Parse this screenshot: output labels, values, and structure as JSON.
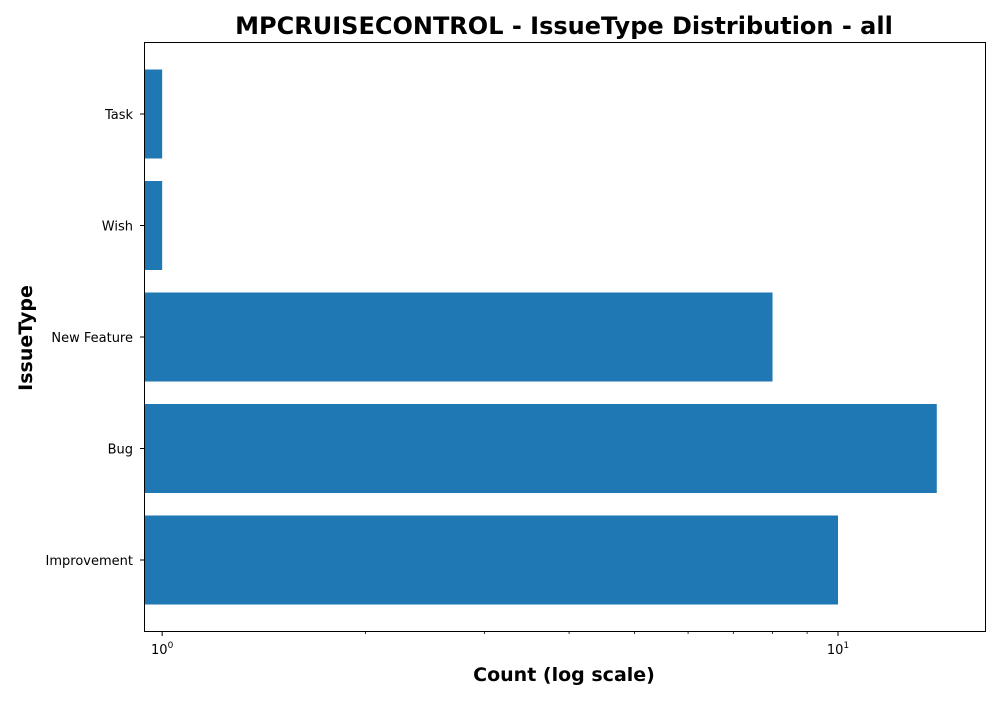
{
  "chart_data": {
    "type": "bar",
    "orientation": "horizontal",
    "title": "MPCRUISECONTROL - IssueType Distribution - all",
    "xlabel": "Count (log scale)",
    "ylabel": "IssueType",
    "xscale": "log",
    "xlim": [
      0.94,
      16.5
    ],
    "x_ticks": [
      {
        "value": 1,
        "base": "10",
        "exponent": "0"
      },
      {
        "value": 10,
        "base": "10",
        "exponent": "1"
      }
    ],
    "categories": [
      "Improvement",
      "Bug",
      "New Feature",
      "Wish",
      "Task"
    ],
    "values": [
      10,
      14,
      8,
      1,
      1
    ],
    "grid": false,
    "legend": "none",
    "colors": {
      "bar": "#1f77b4",
      "axis": "#000000",
      "background": "#ffffff"
    }
  }
}
